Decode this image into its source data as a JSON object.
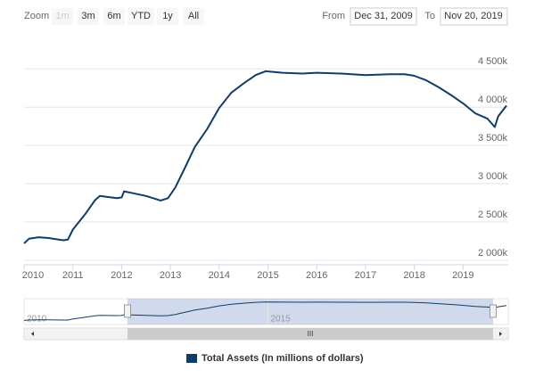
{
  "range_selector": {
    "label": "Zoom",
    "buttons": [
      "1m",
      "3m",
      "6m",
      "YTD",
      "1y",
      "All"
    ],
    "from_label": "From",
    "from": "Dec 31, 2009",
    "to_label": "To",
    "to": "Nov 20, 2019"
  },
  "chart_data": {
    "type": "line",
    "x": [
      2010.0,
      2010.1,
      2010.3,
      2010.5,
      2010.8,
      2010.9,
      2011.0,
      2011.25,
      2011.45,
      2011.55,
      2011.9,
      2012.0,
      2012.05,
      2012.2,
      2012.5,
      2012.8,
      2012.95,
      2013.1,
      2013.3,
      2013.5,
      2013.75,
      2014.0,
      2014.25,
      2014.5,
      2014.75,
      2014.95,
      2015.3,
      2015.7,
      2016.0,
      2016.5,
      2017.0,
      2017.5,
      2017.8,
      2018.0,
      2018.25,
      2018.5,
      2018.75,
      2019.0,
      2019.25,
      2019.5,
      2019.65,
      2019.72,
      2019.89
    ],
    "series": [
      {
        "name": "Total Assets (In millions of dollars)",
        "color": "#0e3d6b",
        "values": [
          2220000,
          2280000,
          2300000,
          2290000,
          2260000,
          2270000,
          2400000,
          2600000,
          2780000,
          2840000,
          2810000,
          2820000,
          2900000,
          2880000,
          2840000,
          2780000,
          2810000,
          2950000,
          3210000,
          3480000,
          3710000,
          3990000,
          4190000,
          4310000,
          4420000,
          4470000,
          4450000,
          4440000,
          4450000,
          4440000,
          4420000,
          4430000,
          4430000,
          4410000,
          4350000,
          4260000,
          4160000,
          4050000,
          3920000,
          3850000,
          3740000,
          3880000,
          4020000
        ]
      }
    ],
    "xlim": [
      2010.0,
      2019.89
    ],
    "xticks": [
      2010,
      2011,
      2012,
      2013,
      2014,
      2015,
      2016,
      2017,
      2018,
      2019
    ],
    "ylim": [
      1940000,
      4760000
    ],
    "yticks": [
      {
        "value": 2000000,
        "label": "2 000k"
      },
      {
        "value": 2500000,
        "label": "2 500k"
      },
      {
        "value": 3000000,
        "label": "3 000k"
      },
      {
        "value": 3500000,
        "label": "3 500k"
      },
      {
        "value": 4000000,
        "label": "4 000k"
      },
      {
        "value": 4500000,
        "label": "4 500k"
      }
    ],
    "grid": true,
    "legend": "bottom"
  }
}
